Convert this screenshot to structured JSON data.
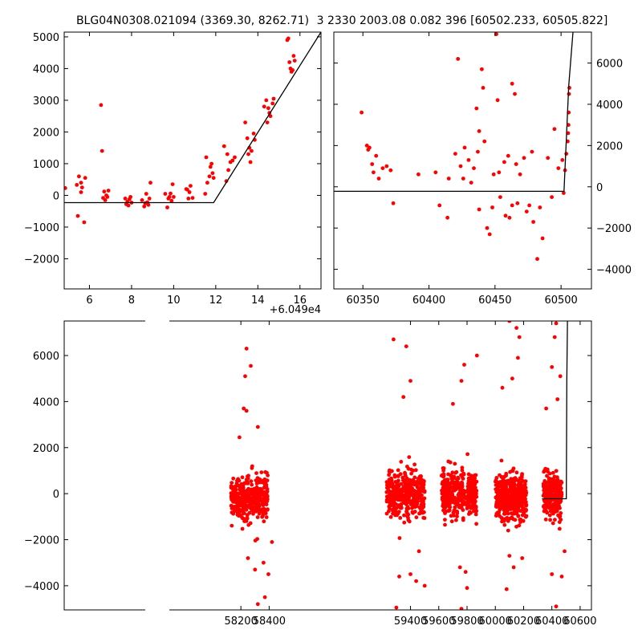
{
  "header": {
    "left": "BLG04N0308.021094 (3369.30, 8262.71)",
    "right": "3 2330 2003.08 0.082 396 [60502.233, 60505.822]"
  },
  "colors": {
    "points": "#ff0000",
    "model": "#000000"
  },
  "chart_data": [
    {
      "type": "scatter",
      "panel": "top-left",
      "xlim": [
        4.8,
        17.0
      ],
      "ylim": [
        -2950,
        5150
      ],
      "x_ticks": [
        "6",
        "8",
        "10",
        "12",
        "14",
        "16"
      ],
      "x_tick_values": [
        6,
        8,
        10,
        12,
        14,
        16
      ],
      "y_ticks": [
        "−2000",
        "−1000",
        "0",
        "1000",
        "2000",
        "3000",
        "4000",
        "5000"
      ],
      "y_tick_values": [
        -2000,
        -1000,
        0,
        1000,
        2000,
        3000,
        4000,
        5000
      ],
      "x_offset_label": "+6.049e4",
      "points": [
        [
          4.85,
          230
        ],
        [
          5.4,
          330
        ],
        [
          5.45,
          -650
        ],
        [
          5.5,
          600
        ],
        [
          5.6,
          400
        ],
        [
          5.75,
          -850
        ],
        [
          5.8,
          550
        ],
        [
          5.65,
          250
        ],
        [
          5.6,
          100
        ],
        [
          6.55,
          2850
        ],
        [
          6.6,
          1400
        ],
        [
          6.65,
          -80
        ],
        [
          6.7,
          120
        ],
        [
          6.8,
          0
        ],
        [
          6.85,
          -50
        ],
        [
          6.9,
          150
        ],
        [
          6.75,
          -150
        ],
        [
          7.7,
          -100
        ],
        [
          7.75,
          -280
        ],
        [
          7.8,
          -200
        ],
        [
          7.9,
          -120
        ],
        [
          8.0,
          -230
        ],
        [
          7.85,
          -320
        ],
        [
          7.95,
          -50
        ],
        [
          8.5,
          -150
        ],
        [
          8.6,
          -350
        ],
        [
          8.65,
          -250
        ],
        [
          8.7,
          50
        ],
        [
          8.75,
          -220
        ],
        [
          8.85,
          -100
        ],
        [
          8.9,
          400
        ],
        [
          8.8,
          -300
        ],
        [
          9.6,
          50
        ],
        [
          9.7,
          -380
        ],
        [
          9.75,
          -100
        ],
        [
          9.8,
          -50
        ],
        [
          9.85,
          60
        ],
        [
          9.9,
          -170
        ],
        [
          9.95,
          350
        ],
        [
          10.0,
          -50
        ],
        [
          10.6,
          200
        ],
        [
          10.7,
          -100
        ],
        [
          10.75,
          100
        ],
        [
          10.8,
          300
        ],
        [
          10.9,
          -80
        ],
        [
          10.65,
          180
        ],
        [
          11.5,
          50
        ],
        [
          11.6,
          400
        ],
        [
          11.7,
          600
        ],
        [
          11.75,
          900
        ],
        [
          11.8,
          1000
        ],
        [
          11.85,
          700
        ],
        [
          11.9,
          550
        ],
        [
          11.55,
          1200
        ],
        [
          12.4,
          1550
        ],
        [
          12.5,
          450
        ],
        [
          12.6,
          800
        ],
        [
          12.7,
          1050
        ],
        [
          12.8,
          1100
        ],
        [
          12.9,
          1200
        ],
        [
          12.55,
          1300
        ],
        [
          13.5,
          1800
        ],
        [
          13.55,
          1300
        ],
        [
          13.6,
          1500
        ],
        [
          13.65,
          1050
        ],
        [
          13.7,
          1400
        ],
        [
          13.8,
          1950
        ],
        [
          13.85,
          1750
        ],
        [
          13.4,
          2300
        ],
        [
          14.3,
          2800
        ],
        [
          14.4,
          3000
        ],
        [
          14.5,
          2750
        ],
        [
          14.55,
          2600
        ],
        [
          14.6,
          2500
        ],
        [
          14.7,
          2900
        ],
        [
          14.75,
          3050
        ],
        [
          14.45,
          2300
        ],
        [
          15.4,
          4900
        ],
        [
          15.45,
          4950
        ],
        [
          15.5,
          4200
        ],
        [
          15.55,
          4000
        ],
        [
          15.6,
          3900
        ],
        [
          15.7,
          4400
        ],
        [
          15.75,
          4250
        ],
        [
          15.65,
          3950
        ]
      ],
      "model": [
        [
          4.8,
          -230
        ],
        [
          11.9,
          -230
        ],
        [
          17.0,
          5150
        ]
      ]
    },
    {
      "type": "scatter",
      "panel": "top-right",
      "xlim": [
        60328,
        60523
      ],
      "ylim": [
        -4950,
        7500
      ],
      "x_ticks": [
        "60350",
        "60400",
        "60450",
        "60500"
      ],
      "x_tick_values": [
        60350,
        60400,
        60450,
        60500
      ],
      "y_ticks": [
        "−4000",
        "−2000",
        "0",
        "2000",
        "4000",
        "6000"
      ],
      "y_tick_values": [
        -4000,
        -2000,
        0,
        2000,
        4000,
        6000
      ],
      "points": [
        [
          60349,
          3600
        ],
        [
          60353,
          2000
        ],
        [
          60354,
          1800
        ],
        [
          60355,
          1900
        ],
        [
          60357,
          1100
        ],
        [
          60358,
          700
        ],
        [
          60360,
          1500
        ],
        [
          60362,
          400
        ],
        [
          60365,
          900
        ],
        [
          60368,
          1000
        ],
        [
          60371,
          800
        ],
        [
          60373,
          -800
        ],
        [
          60392,
          600
        ],
        [
          60405,
          700
        ],
        [
          60408,
          -900
        ],
        [
          60414,
          -1500
        ],
        [
          60415,
          400
        ],
        [
          60420,
          1600
        ],
        [
          60422,
          6200
        ],
        [
          60424,
          1000
        ],
        [
          60426,
          400
        ],
        [
          60427,
          1900
        ],
        [
          60430,
          1300
        ],
        [
          60432,
          200
        ],
        [
          60434,
          900
        ],
        [
          60436,
          3800
        ],
        [
          60437,
          1700
        ],
        [
          60438,
          2700
        ],
        [
          60438,
          -1100
        ],
        [
          60440,
          5700
        ],
        [
          60441,
          4800
        ],
        [
          60442,
          2200
        ],
        [
          60444,
          -2000
        ],
        [
          60446,
          -2300
        ],
        [
          60448,
          -1000
        ],
        [
          60449,
          600
        ],
        [
          60451,
          7400
        ],
        [
          60452,
          4200
        ],
        [
          60453,
          700
        ],
        [
          60454,
          -500
        ],
        [
          60457,
          1200
        ],
        [
          60458,
          -1400
        ],
        [
          60460,
          1500
        ],
        [
          60461,
          -1500
        ],
        [
          60463,
          5000
        ],
        [
          60463,
          -900
        ],
        [
          60465,
          4500
        ],
        [
          60466,
          1100
        ],
        [
          60467,
          -800
        ],
        [
          60469,
          600
        ],
        [
          60472,
          1400
        ],
        [
          60474,
          -1200
        ],
        [
          60476,
          -900
        ],
        [
          60478,
          1700
        ],
        [
          60479,
          -1700
        ],
        [
          60482,
          -3500
        ],
        [
          60484,
          -1000
        ],
        [
          60486,
          -2500
        ],
        [
          60490,
          1400
        ],
        [
          60493,
          -500
        ],
        [
          60495,
          2800
        ],
        [
          60498,
          900
        ],
        [
          60501,
          1300
        ],
        [
          60502,
          -300
        ],
        [
          60503,
          800
        ],
        [
          60504,
          1600
        ],
        [
          60505,
          2200
        ],
        [
          60505.4,
          2600
        ],
        [
          60505.6,
          3000
        ],
        [
          60505.8,
          3600
        ],
        [
          60506,
          4500
        ],
        [
          60506.3,
          4800
        ]
      ],
      "model": [
        [
          60328,
          -220
        ],
        [
          60502.2,
          -220
        ],
        [
          60505.8,
          4900
        ],
        [
          60509,
          7500
        ]
      ]
    },
    {
      "type": "scatter",
      "panel": "bottom",
      "xlim": [
        56950,
        60680
      ],
      "ylim": [
        -5050,
        7500
      ],
      "x_ticks": [
        "58200",
        "58400",
        "59400",
        "59600",
        "59800",
        "60000",
        "60200",
        "60400",
        "60600"
      ],
      "x_tick_values": [
        58200,
        58400,
        59400,
        59600,
        59800,
        60000,
        60200,
        60400,
        60600
      ],
      "y_ticks": [
        "−4000",
        "−2000",
        "0",
        "2000",
        "4000",
        "6000"
      ],
      "y_tick_values": [
        -4000,
        -2000,
        0,
        2000,
        4000,
        6000
      ],
      "clusters": [
        {
          "x_range": [
            58130,
            58390
          ],
          "center": -150,
          "spread": 450,
          "count": 420
        },
        {
          "x_range": [
            59230,
            59500
          ],
          "center": 0,
          "spread": 500,
          "count": 420
        },
        {
          "x_range": [
            59620,
            59790
          ],
          "center": 0,
          "spread": 450,
          "count": 260
        },
        {
          "x_range": [
            59800,
            59870
          ],
          "center": 0,
          "spread": 500,
          "count": 140
        },
        {
          "x_range": [
            60000,
            60220
          ],
          "center": -100,
          "spread": 480,
          "count": 420
        },
        {
          "x_range": [
            60340,
            60470
          ],
          "center": -80,
          "spread": 450,
          "count": 240
        }
      ],
      "outliers": [
        [
          58240,
          6300
        ],
        [
          58230,
          5100
        ],
        [
          58270,
          5550
        ],
        [
          58220,
          3700
        ],
        [
          58240,
          3600
        ],
        [
          58320,
          2900
        ],
        [
          58190,
          2450
        ],
        [
          58250,
          -2800
        ],
        [
          58300,
          -3300
        ],
        [
          58320,
          -4800
        ],
        [
          58360,
          -3000
        ],
        [
          58370,
          -4500
        ],
        [
          58395,
          -3500
        ],
        [
          58420,
          -2100
        ],
        [
          59280,
          6700
        ],
        [
          59370,
          6400
        ],
        [
          59400,
          4900
        ],
        [
          59350,
          4200
        ],
        [
          59320,
          -3600
        ],
        [
          59440,
          -3800
        ],
        [
          59500,
          -4000
        ],
        [
          59460,
          -2500
        ],
        [
          59300,
          -4950
        ],
        [
          59400,
          -3500
        ],
        [
          59780,
          5600
        ],
        [
          59760,
          4900
        ],
        [
          59700,
          3900
        ],
        [
          59750,
          -3200
        ],
        [
          59790,
          -3400
        ],
        [
          59800,
          -4100
        ],
        [
          59870,
          6000
        ],
        [
          59760,
          -5000
        ],
        [
          60050,
          4600
        ],
        [
          60100,
          7500
        ],
        [
          60150,
          7200
        ],
        [
          60170,
          6800
        ],
        [
          60160,
          5900
        ],
        [
          60120,
          5000
        ],
        [
          60080,
          -4150
        ],
        [
          60100,
          -2700
        ],
        [
          60130,
          -3200
        ],
        [
          60190,
          -2800
        ],
        [
          60430,
          7400
        ],
        [
          60460,
          5100
        ],
        [
          60420,
          6800
        ],
        [
          60400,
          5500
        ],
        [
          60440,
          4100
        ],
        [
          60360,
          3700
        ],
        [
          60400,
          -3500
        ],
        [
          60430,
          -4900
        ],
        [
          60470,
          -3600
        ],
        [
          60490,
          -2500
        ]
      ],
      "model": [
        [
          60330,
          -220
        ],
        [
          60502.2,
          -220
        ],
        [
          60505.8,
          4900
        ],
        [
          60510,
          7500
        ]
      ]
    }
  ]
}
